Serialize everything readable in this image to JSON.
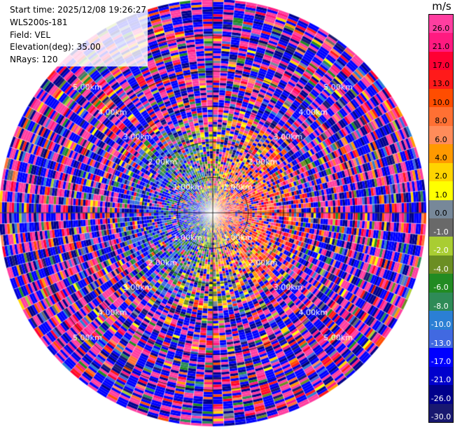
{
  "info": {
    "start_time": "Start time: 2025/12/08 19:26:27",
    "instrument": "WLS200s-181",
    "field": "Field: VEL",
    "elevation": "Elevation(deg): 35.00",
    "nrays": "NRays: 120"
  },
  "chart_data": {
    "type": "heatmap",
    "title": "",
    "projection": "polar-ppi",
    "n_rays": 120,
    "range_rings_km": [
      1.0,
      2.0,
      3.0,
      4.0,
      5.0
    ],
    "range_ring_labels": [
      "1.00km",
      "2.00km",
      "3.00km",
      "4.00km",
      "5.00km"
    ],
    "ring_label_directions": [
      "northwest",
      "northeast",
      "southwest",
      "southeast"
    ],
    "max_range_km": 6.0,
    "colorbar": {
      "unit": "m/s",
      "ticks": [
        "26.0",
        "21.0",
        "17.0",
        "13.0",
        "10.0",
        "8.0",
        "6.0",
        "4.0",
        "2.0",
        "1.0",
        "0.0",
        "-1.0",
        "-2.0",
        "-4.0",
        "-6.0",
        "-8.0",
        "-10.0",
        "-13.0",
        "-17.0",
        "-21.0",
        "-26.0",
        "-30.0"
      ],
      "colors": [
        "#ff3ea0",
        "#ff1a80",
        "#ff0033",
        "#ff1a1a",
        "#ff4d00",
        "#ff7033",
        "#ff8c5a",
        "#ff9900",
        "#ffd400",
        "#ffff00",
        "#778899",
        "#696969",
        "#a9cd32",
        "#6b8e23",
        "#228b22",
        "#2e8b57",
        "#2b7fd4",
        "#4169e1",
        "#0000ff",
        "#0000cd",
        "#00008b",
        "#191970"
      ]
    },
    "velocity_pattern": {
      "near_range_east": "positive (red/orange, 6 to 21 m/s)",
      "near_range_west": "negative (blue/green, -4 to -17 m/s)",
      "far_range": "noisy mixed values across full scale, dominated by -17 and 26 m/s"
    }
  }
}
